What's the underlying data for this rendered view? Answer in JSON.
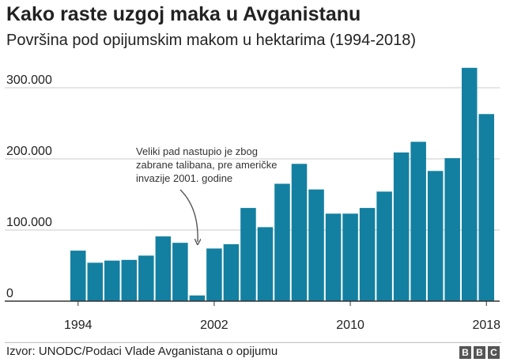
{
  "title": "Kako raste uzgoj maka u Avganistanu",
  "subtitle": "Površina pod opijumskim makom u hektarima (1994-2018)",
  "source": "Izvor: UNODC/Podaci Vlade Avganistana o opijumu",
  "logo": [
    "B",
    "B",
    "C"
  ],
  "annotation": {
    "lines": [
      "Veliki pad nastupio je zbog",
      "zabrane talibana, pre američke",
      "invazije 2001. godine"
    ]
  },
  "colors": {
    "bar": "#1380a1",
    "grid": "#cbcbcb",
    "baseline": "#333333",
    "text": "#222222"
  },
  "chart_data": {
    "type": "bar",
    "categories": [
      "1994",
      "1995",
      "1996",
      "1997",
      "1998",
      "1999",
      "2000",
      "2001",
      "2002",
      "2003",
      "2004",
      "2005",
      "2006",
      "2007",
      "2008",
      "2009",
      "2010",
      "2011",
      "2012",
      "2013",
      "2014",
      "2015",
      "2016",
      "2017",
      "2018"
    ],
    "values": [
      71000,
      54000,
      57000,
      58000,
      64000,
      91000,
      82000,
      8000,
      74000,
      80000,
      131000,
      104000,
      165000,
      193000,
      157000,
      123000,
      123000,
      131000,
      154000,
      209000,
      224000,
      183000,
      201000,
      328000,
      263000
    ],
    "ylim": [
      0,
      330000
    ],
    "yticks": [
      0,
      100000,
      200000,
      300000
    ],
    "ytick_labels": [
      "0",
      "100.000",
      "200.000",
      "300.000"
    ],
    "xtick_labels": [
      "1994",
      "2002",
      "2010",
      "2018"
    ],
    "grid": true
  }
}
